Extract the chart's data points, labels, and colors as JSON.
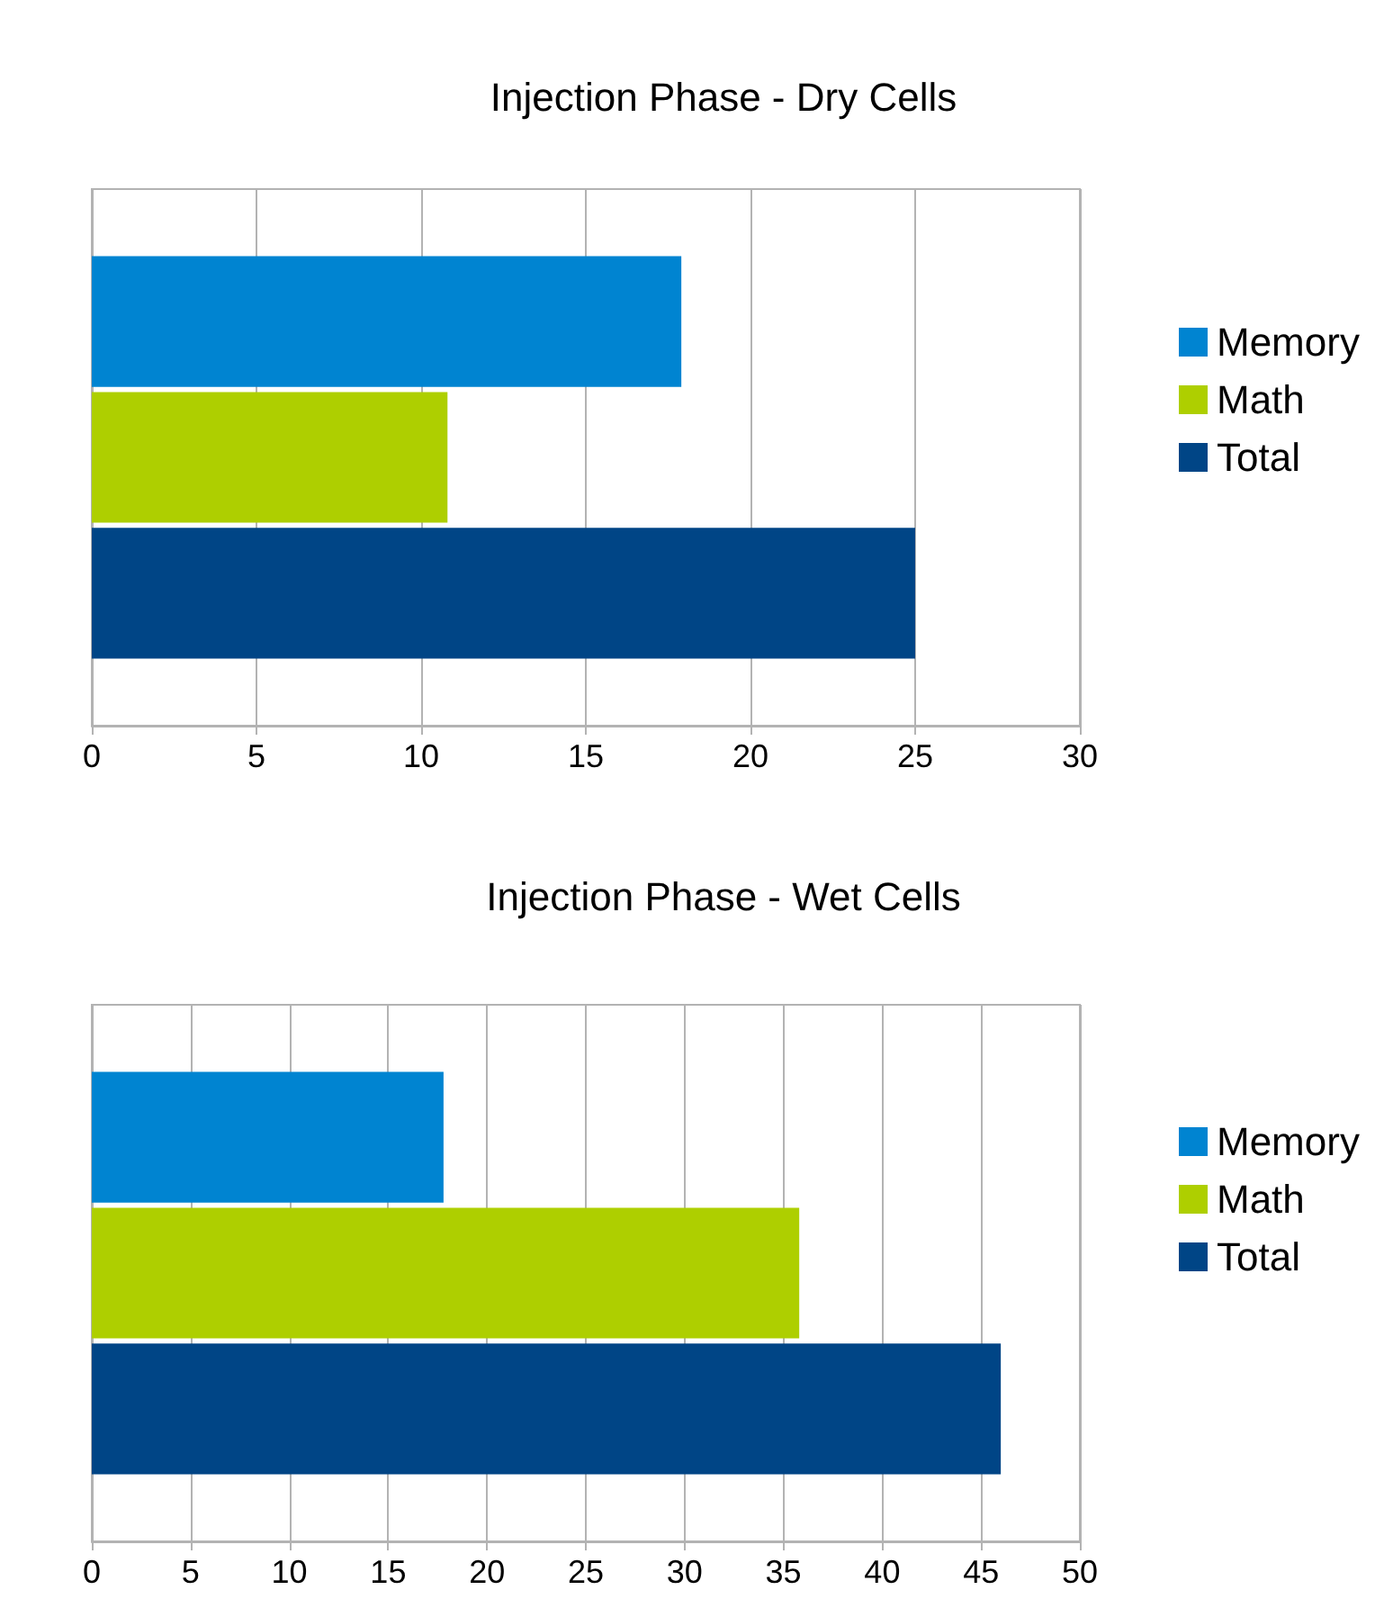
{
  "chart_data": [
    {
      "type": "bar",
      "title": "Injection Phase - Dry Cells",
      "orientation": "horizontal",
      "categories": [
        null
      ],
      "series": [
        {
          "name": "Memory",
          "color": "#0084d1",
          "values": [
            17.9
          ]
        },
        {
          "name": "Math",
          "color": "#aecf00",
          "values": [
            10.8
          ]
        },
        {
          "name": "Total",
          "color": "#004586",
          "values": [
            25
          ]
        }
      ],
      "xlim": [
        0,
        30
      ],
      "xticks": [
        0,
        5,
        10,
        15,
        20,
        25,
        30
      ],
      "grid": "x",
      "legend": "right"
    },
    {
      "type": "bar",
      "title": "Injection Phase - Wet Cells",
      "orientation": "horizontal",
      "categories": [
        null
      ],
      "series": [
        {
          "name": "Memory",
          "color": "#0084d1",
          "values": [
            17.8
          ]
        },
        {
          "name": "Math",
          "color": "#aecf00",
          "values": [
            35.8
          ]
        },
        {
          "name": "Total",
          "color": "#004586",
          "values": [
            46
          ]
        }
      ],
      "xlim": [
        0,
        50
      ],
      "xticks": [
        0,
        5,
        10,
        15,
        20,
        25,
        30,
        35,
        40,
        45,
        50
      ],
      "grid": "x",
      "legend": "right"
    }
  ]
}
